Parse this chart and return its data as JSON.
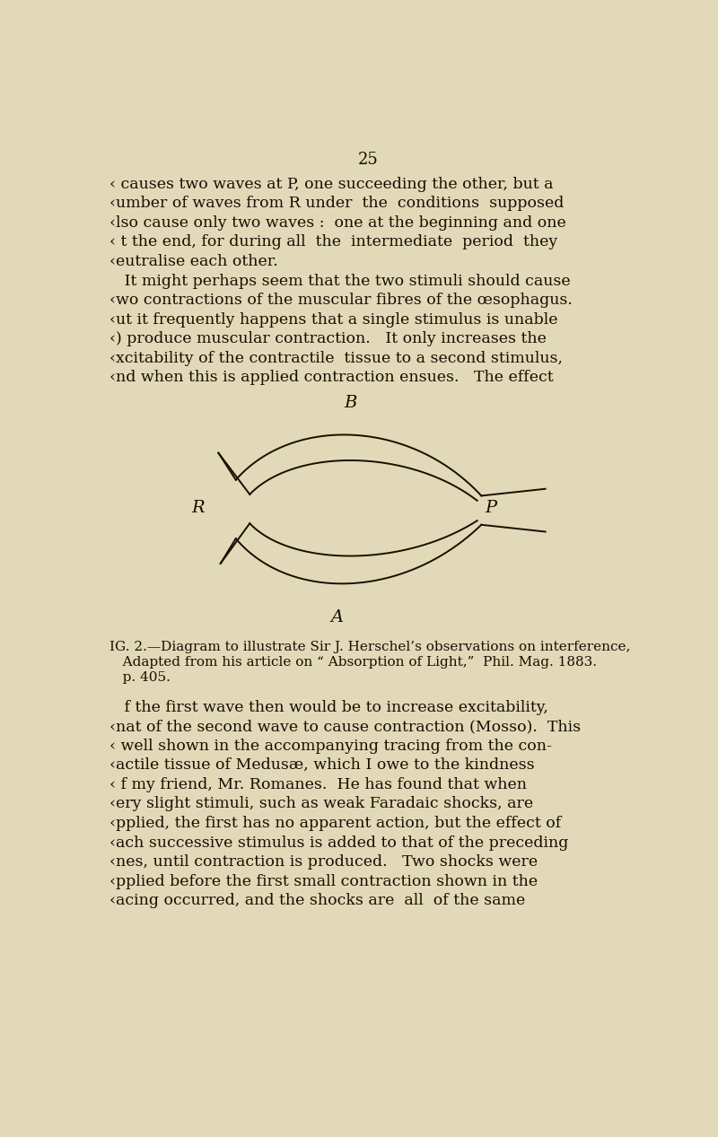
{
  "background_color": "#e2d9b8",
  "page_number": "25",
  "text_color": "#1a0e00",
  "page_number_fontsize": 13,
  "body_fontsize": 12.5,
  "caption_fontsize": 11,
  "diagram_label_fontsize": 14,
  "top_lines": [
    "‹ causes two waves at P, one succeeding the other, but a",
    "‹umber of waves from R under  the  conditions  supposed",
    "‹lso cause only two waves :  one at the beginning and one",
    "‹ t the end, for during all  the  intermediate  period  they",
    "‹eutralise each other.",
    "   It might perhaps seem that the two stimuli should cause",
    "‹wo contractions of the muscular fibres of the œsophagus.",
    "‹ut it frequently happens that a single stimulus is unable",
    "‹) produce muscular contraction.   It only increases the",
    "‹xcitability of the contractile  tissue to a second stimulus,",
    "‹nd when this is applied contraction ensues.   The effect"
  ],
  "caption_lines": [
    "IG. 2.—Diagram to illustrate Sir J. Herschel’s observations on interference,",
    "   Adapted from his article on “ Absorption of Light,”  Phil. Mag. 1883.",
    "   p. 405."
  ],
  "bottom_lines": [
    "   f the first wave then would be to increase excitability,",
    "‹nat of the second wave to cause contraction (Mosso).  This",
    "‹ well shown in the accompanying tracing from the con-",
    "‹actile tissue of Medusæ, which I owe to the kindness",
    "‹ f my friend, Mr. Romanes.  He has found that when",
    "‹ery slight stimuli, such as weak Faradaic shocks, are",
    "‹pplied, the first has no apparent action, but the effect of",
    "‹ach successive stimulus is added to that of the preceding",
    "‹nes, until contraction is produced.   Two shocks were",
    "‹pplied before the first small contraction shown in the",
    "‹acing occurred, and the shocks are  all  of the same"
  ],
  "diagram": {
    "label_B": "B",
    "label_A": "A",
    "label_R": "R",
    "label_P": "P",
    "line_color": "#1a0e00",
    "line_width": 1.4
  }
}
